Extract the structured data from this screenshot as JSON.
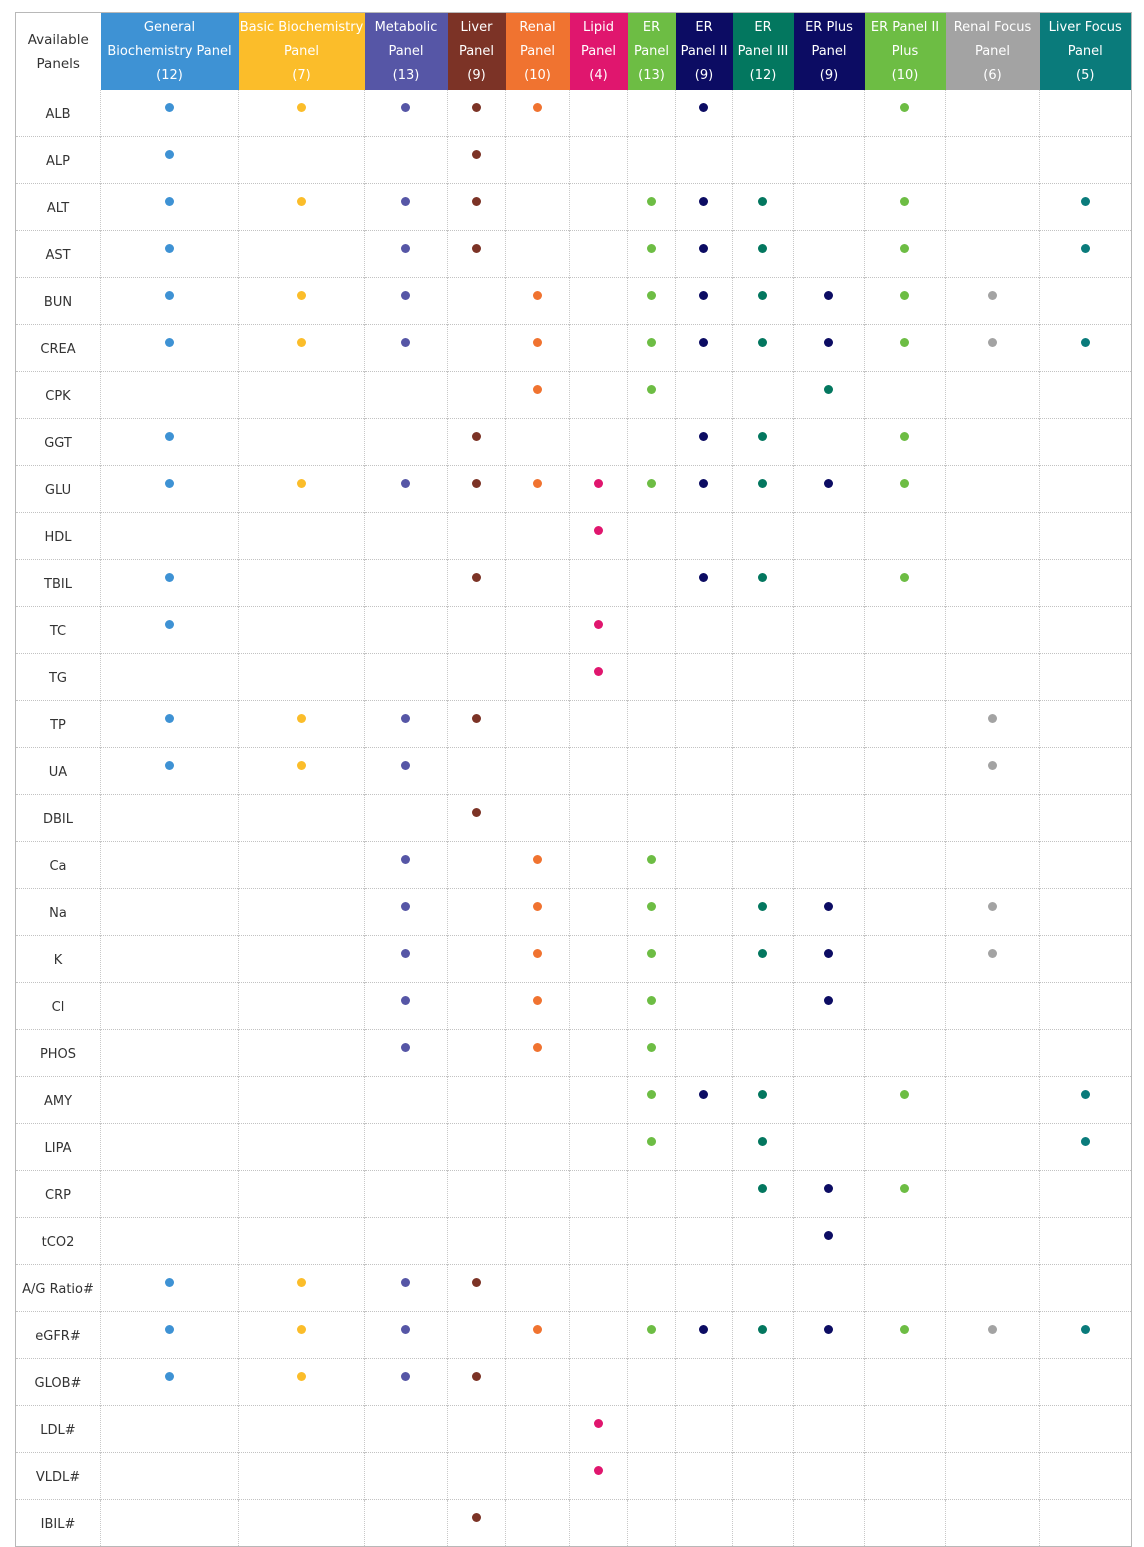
{
  "table": {
    "corner_label": [
      "Available",
      "Panels"
    ],
    "panels": [
      {
        "lines": [
          "General",
          "Biochemistry Panel",
          "(12)"
        ],
        "color": "#3e92d4"
      },
      {
        "lines": [
          "Basic Biochemistry",
          "Panel",
          "(7)"
        ],
        "color": "#fbbd2a"
      },
      {
        "lines": [
          "Metabolic",
          "Panel",
          "(13)"
        ],
        "color": "#5656a6"
      },
      {
        "lines": [
          "Liver",
          "Panel",
          "(9)"
        ],
        "color": "#7c3326"
      },
      {
        "lines": [
          "Renal",
          "Panel",
          "(10)"
        ],
        "color": "#f07330"
      },
      {
        "lines": [
          "Lipid",
          "Panel",
          "(4)"
        ],
        "color": "#e0166e"
      },
      {
        "lines": [
          "ER",
          "Panel",
          "(13)"
        ],
        "color": "#6dbd44"
      },
      {
        "lines": [
          "ER",
          "Panel II",
          "(9)"
        ],
        "color": "#0c0c63"
      },
      {
        "lines": [
          "ER",
          "Panel III",
          "(12)"
        ],
        "color": "#03775f"
      },
      {
        "lines": [
          "ER Plus",
          "Panel",
          "(9)"
        ],
        "color": "#0c0c63"
      },
      {
        "lines": [
          "ER Panel II",
          "Plus",
          "(10)"
        ],
        "color": "#6dbd44"
      },
      {
        "lines": [
          "Renal Focus",
          "Panel",
          "(6)"
        ],
        "color": "#a3a3a3"
      },
      {
        "lines": [
          "Liver Focus",
          "Panel",
          "(5)"
        ],
        "color": "#0a7b7b"
      }
    ],
    "rows": [
      {
        "test": "ALB",
        "marks": [
          0,
          1,
          2,
          3,
          4,
          7,
          10
        ]
      },
      {
        "test": "ALP",
        "marks": [
          0,
          3
        ]
      },
      {
        "test": "ALT",
        "marks": [
          0,
          1,
          2,
          3,
          6,
          7,
          8,
          10,
          12
        ]
      },
      {
        "test": "AST",
        "marks": [
          0,
          2,
          3,
          6,
          7,
          8,
          10,
          12
        ]
      },
      {
        "test": "BUN",
        "marks": [
          0,
          1,
          2,
          4,
          6,
          7,
          8,
          9,
          10,
          11
        ]
      },
      {
        "test": "CREA",
        "marks": [
          0,
          1,
          2,
          4,
          6,
          7,
          8,
          9,
          10,
          11,
          12
        ]
      },
      {
        "test": "CPK",
        "marks": [
          4,
          6,
          9
        ],
        "mark_colors": {
          "9": "#03775f"
        }
      },
      {
        "test": "GGT",
        "marks": [
          0,
          3,
          7,
          8,
          10
        ]
      },
      {
        "test": "GLU",
        "marks": [
          0,
          1,
          2,
          3,
          4,
          5,
          6,
          7,
          8,
          9,
          10
        ]
      },
      {
        "test": "HDL",
        "marks": [
          5
        ]
      },
      {
        "test": "TBIL",
        "marks": [
          0,
          3,
          7,
          8,
          10
        ]
      },
      {
        "test": "TC",
        "marks": [
          0,
          5
        ]
      },
      {
        "test": "TG",
        "marks": [
          5
        ]
      },
      {
        "test": "TP",
        "marks": [
          0,
          1,
          2,
          3,
          11
        ]
      },
      {
        "test": "UA",
        "marks": [
          0,
          1,
          2,
          11
        ]
      },
      {
        "test": "DBIL",
        "marks": [
          3
        ]
      },
      {
        "test": "Ca",
        "marks": [
          2,
          4,
          6
        ]
      },
      {
        "test": "Na",
        "marks": [
          2,
          4,
          6,
          8,
          9,
          11
        ]
      },
      {
        "test": "K",
        "marks": [
          2,
          4,
          6,
          8,
          9,
          11
        ]
      },
      {
        "test": "Cl",
        "marks": [
          2,
          4,
          6,
          9
        ]
      },
      {
        "test": "PHOS",
        "marks": [
          2,
          4,
          6
        ]
      },
      {
        "test": "AMY",
        "marks": [
          6,
          7,
          8,
          10,
          12
        ]
      },
      {
        "test": "LIPA",
        "marks": [
          6,
          8,
          12
        ]
      },
      {
        "test": "CRP",
        "marks": [
          8,
          9,
          10
        ]
      },
      {
        "test": "tCO2",
        "marks": [
          9
        ]
      },
      {
        "test": "A/G Ratio#",
        "marks": [
          0,
          1,
          2,
          3
        ]
      },
      {
        "test": "eGFR#",
        "marks": [
          0,
          1,
          2,
          4,
          6,
          7,
          8,
          9,
          10,
          11,
          12
        ]
      },
      {
        "test": "GLOB#",
        "marks": [
          0,
          1,
          2,
          3
        ]
      },
      {
        "test": "LDL#",
        "marks": [
          5
        ]
      },
      {
        "test": "VLDL#",
        "marks": [
          5
        ]
      },
      {
        "test": "IBIL#",
        "marks": [
          3
        ]
      }
    ]
  }
}
